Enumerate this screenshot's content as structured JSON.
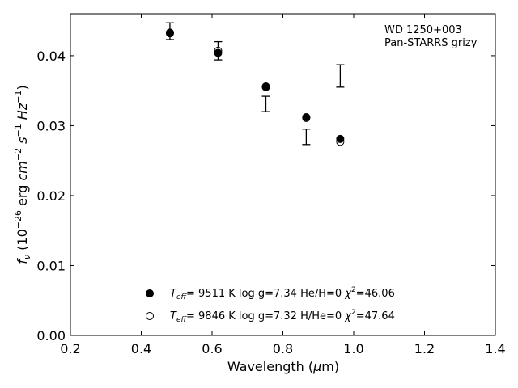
{
  "chart_data": {
    "type": "scatter",
    "annotation": [
      "WD 1250+003",
      "Pan-STARRS grizy"
    ],
    "xlabel": {
      "main": "Wavelength (",
      "mu": "μ",
      "tail": "m)"
    },
    "ylabel": {
      "f": "f",
      "nu": "ν",
      "pre": " (10",
      "exp26": "−26",
      "erg": " erg ",
      "cm": "cm",
      "exp2": "−2",
      "s": " s",
      "exp1": "−1",
      "hz": " Hz",
      "exp1b": "−1",
      "close": ")"
    },
    "xlim": [
      0.2,
      1.4
    ],
    "ylim": [
      0.0,
      0.046
    ],
    "x_ticks": [
      "0.2",
      "0.4",
      "0.6",
      "0.8",
      "1.0",
      "1.2",
      "1.4"
    ],
    "y_ticks": [
      "0.00",
      "0.01",
      "0.02",
      "0.03",
      "0.04"
    ],
    "observed": {
      "x": [
        0.481,
        0.617,
        0.752,
        0.866,
        0.962
      ],
      "y": [
        0.0435,
        0.0407,
        0.0331,
        0.0284,
        0.0371
      ],
      "yerr": [
        0.0012,
        0.0013,
        0.0011,
        0.0011,
        0.0016
      ]
    },
    "series": [
      {
        "marker": "filled",
        "x": [
          0.481,
          0.617,
          0.752,
          0.866,
          0.962
        ],
        "y": [
          0.0433,
          0.0404,
          0.0356,
          0.0312,
          0.0281
        ],
        "legend": {
          "t": "T",
          "eff": "eff",
          "rest": "=  9511 K  log g=7.34  He/H=0  ",
          "chi": "χ",
          "sq": "2",
          "val": "=46.06"
        }
      },
      {
        "marker": "open",
        "x": [
          0.481,
          0.617,
          0.752,
          0.866,
          0.962
        ],
        "y": [
          0.0432,
          0.0407,
          0.0355,
          0.0311,
          0.0277
        ],
        "legend": {
          "t": "T",
          "eff": "eff",
          "rest": "=  9846 K  log g=7.32  H/He=0  ",
          "chi": "χ",
          "sq": "2",
          "val": "=47.64"
        }
      }
    ]
  }
}
